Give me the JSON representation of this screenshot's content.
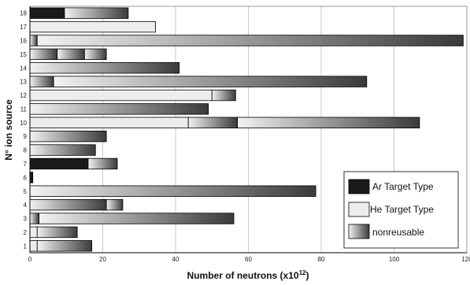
{
  "chart_data": {
    "type": "bar",
    "orientation": "horizontal",
    "stacked": true,
    "xlabel": "Number of neutrons (x10",
    "xlabel_sup": "12",
    "xlabel_close": ")",
    "ylabel": "N° ion source",
    "xlim": [
      0,
      120
    ],
    "xticks": [
      0,
      20,
      40,
      60,
      80,
      100,
      120
    ],
    "categories": [
      "1",
      "2",
      "3",
      "4",
      "5",
      "6",
      "7",
      "8",
      "9",
      "10",
      "11",
      "12",
      "13",
      "14",
      "15",
      "16",
      "17",
      "18"
    ],
    "legend_position": "bottom-right",
    "grid": true,
    "segment_types": [
      "Ar Target Type",
      "He Target Type",
      "nonreusable"
    ],
    "series": [
      {
        "source": "1",
        "segments": [
          [
            "He Target Type",
            2
          ],
          [
            "nonreusable",
            15
          ]
        ]
      },
      {
        "source": "2",
        "segments": [
          [
            "He Target Type",
            2
          ],
          [
            "nonreusable",
            11
          ]
        ]
      },
      {
        "source": "3",
        "segments": [
          [
            "nonreusable",
            2.5
          ],
          [
            "nonreusable",
            53.5
          ]
        ]
      },
      {
        "source": "4",
        "segments": [
          [
            "nonreusable",
            21
          ],
          [
            "nonreusable",
            4.5
          ]
        ]
      },
      {
        "source": "5",
        "segments": [
          [
            "nonreusable",
            78.5
          ]
        ]
      },
      {
        "source": "6",
        "segments": [
          [
            "Ar Target Type",
            0.8
          ]
        ]
      },
      {
        "source": "7",
        "segments": [
          [
            "Ar Target Type",
            16
          ],
          [
            "nonreusable",
            8
          ]
        ]
      },
      {
        "source": "8",
        "segments": [
          [
            "nonreusable",
            18
          ]
        ]
      },
      {
        "source": "9",
        "segments": [
          [
            "nonreusable",
            21
          ]
        ]
      },
      {
        "source": "10",
        "segments": [
          [
            "He Target Type",
            43.5
          ],
          [
            "nonreusable",
            13.5
          ],
          [
            "nonreusable",
            50
          ]
        ]
      },
      {
        "source": "11",
        "segments": [
          [
            "nonreusable",
            49
          ]
        ]
      },
      {
        "source": "12",
        "segments": [
          [
            "He Target Type",
            50
          ],
          [
            "nonreusable",
            6.5
          ]
        ]
      },
      {
        "source": "13",
        "segments": [
          [
            "nonreusable",
            6.5
          ],
          [
            "nonreusable",
            86
          ]
        ]
      },
      {
        "source": "14",
        "segments": [
          [
            "nonreusable",
            41
          ]
        ]
      },
      {
        "source": "15",
        "segments": [
          [
            "nonreusable",
            7.5
          ],
          [
            "nonreusable",
            7.5
          ],
          [
            "nonreusable",
            6
          ]
        ]
      },
      {
        "source": "16",
        "segments": [
          [
            "nonreusable",
            2
          ],
          [
            "nonreusable",
            117
          ]
        ]
      },
      {
        "source": "17",
        "segments": [
          [
            "He Target Type",
            34.5
          ]
        ]
      },
      {
        "source": "18",
        "segments": [
          [
            "Ar Target Type",
            9.5
          ],
          [
            "nonreusable",
            17.5
          ]
        ]
      }
    ]
  },
  "colors": {
    "ar": "#1a1a1a",
    "he": "#ededed",
    "grad_light": "#f2f2f2",
    "grad_dark": "#3a3a3a",
    "grid": "#c8c8c8",
    "border": "#000000",
    "legend_border": "#333333"
  }
}
